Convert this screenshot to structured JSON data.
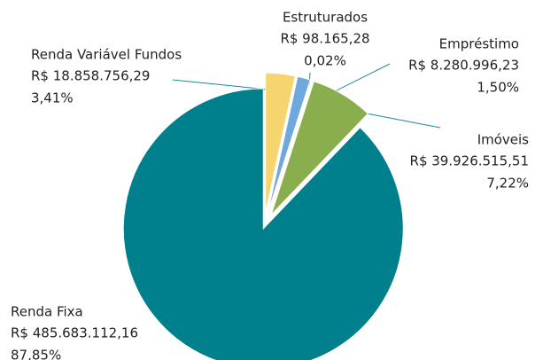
{
  "chart_data": {
    "type": "pie",
    "categories": [
      "Renda Variável Fundos",
      "Estruturados",
      "Empréstimo",
      "Imóveis",
      "Renda Fixa"
    ],
    "amount_labels": [
      "R$ 18.858.756,29",
      "R$ 98.165,28",
      "R$ 8.280.996,23",
      "R$ 39.926.515,51",
      "R$ 485.683.112,16"
    ],
    "values": [
      3.41,
      0.02,
      1.5,
      7.22,
      87.85
    ],
    "value_labels": [
      "3,41%",
      "0,02%",
      "1,50%",
      "7,22%",
      "87,85%"
    ],
    "colors": [
      "#f7d56e",
      "#2f6a1e",
      "#6fa8dc",
      "#8aad4e",
      "#00808c"
    ]
  }
}
